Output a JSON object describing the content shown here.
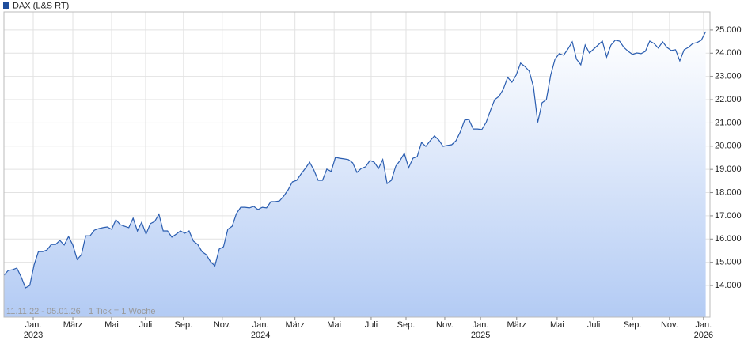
{
  "chart_data": {
    "type": "area",
    "series": [
      {
        "name": "DAX (L&S RT)",
        "color": "#2a5db0",
        "values": [
          14440,
          14650,
          14680,
          14750,
          14370,
          13900,
          14000,
          14890,
          15460,
          15460,
          15530,
          15770,
          15770,
          15940,
          15740,
          16110,
          15740,
          15120,
          15330,
          16140,
          16140,
          16380,
          16450,
          16490,
          16520,
          16420,
          16830,
          16620,
          16550,
          16490,
          16900,
          16350,
          16720,
          16210,
          16660,
          16760,
          17070,
          16350,
          16350,
          16080,
          16210,
          16350,
          16250,
          16350,
          15910,
          15770,
          15460,
          15330,
          15020,
          14850,
          15570,
          15670,
          16420,
          16550,
          17100,
          17370,
          17370,
          17340,
          17410,
          17270,
          17370,
          17340,
          17610,
          17610,
          17640,
          17850,
          18120,
          18460,
          18530,
          18800,
          19040,
          19310,
          18970,
          18530,
          18530,
          19010,
          18910,
          19520,
          19480,
          19450,
          19420,
          19280,
          18870,
          19040,
          19110,
          19380,
          19310,
          19040,
          19420,
          18390,
          18530,
          19140,
          19380,
          19690,
          19070,
          19480,
          19550,
          20160,
          19990,
          20230,
          20440,
          20270,
          19990,
          20030,
          20060,
          20230,
          20610,
          21120,
          21150,
          20740,
          20740,
          20710,
          21020,
          21530,
          22000,
          22140,
          22450,
          22960,
          22750,
          23060,
          23570,
          23430,
          23230,
          22550,
          21020,
          21870,
          22000,
          23060,
          23740,
          23980,
          23910,
          24180,
          24490,
          23740,
          23500,
          24350,
          24010,
          24180,
          24350,
          24520,
          23840,
          24350,
          24560,
          24520,
          24250,
          24080,
          23950,
          24010,
          23980,
          24080,
          24520,
          24420,
          24220,
          24490,
          24250,
          24120,
          24150,
          23670,
          24150,
          24250,
          24420,
          24460,
          24560,
          24930
        ]
      }
    ],
    "xlim": [
      0,
      164
    ],
    "xticks": [
      {
        "value": 6.8,
        "label": "Jan."
      },
      {
        "value": 16,
        "label": "März"
      },
      {
        "value": 25,
        "label": "Mai"
      },
      {
        "value": 32.9,
        "label": "Juli"
      },
      {
        "value": 41.7,
        "label": "Sep."
      },
      {
        "value": 50.7,
        "label": "Nov."
      },
      {
        "value": 59.6,
        "label": "Jan."
      },
      {
        "value": 67.6,
        "label": "März"
      },
      {
        "value": 76.7,
        "label": "Mai"
      },
      {
        "value": 85.3,
        "label": "Juli"
      },
      {
        "value": 93.4,
        "label": "Sep."
      },
      {
        "value": 102.4,
        "label": "Nov."
      },
      {
        "value": 110.7,
        "label": "Jan."
      },
      {
        "value": 119.1,
        "label": "März"
      },
      {
        "value": 128.5,
        "label": "Mai"
      },
      {
        "value": 137,
        "label": "Juli"
      },
      {
        "value": 146,
        "label": "Sep."
      },
      {
        "value": 154.6,
        "label": "Nov."
      },
      {
        "value": 162.5,
        "label": "Jan."
      }
    ],
    "x_year_labels": [
      {
        "value": 6.8,
        "label": "2023"
      },
      {
        "value": 59.6,
        "label": "2024"
      },
      {
        "value": 110.7,
        "label": "2025"
      },
      {
        "value": 162.5,
        "label": "2026"
      }
    ],
    "ylim": [
      12640,
      25780
    ],
    "yticks": [
      {
        "value": 14000,
        "label": "14.000"
      },
      {
        "value": 15000,
        "label": "15.000"
      },
      {
        "value": 16000,
        "label": "16.000"
      },
      {
        "value": 17000,
        "label": "17.000"
      },
      {
        "value": 18000,
        "label": "18.000"
      },
      {
        "value": 19000,
        "label": "19.000"
      },
      {
        "value": 20000,
        "label": "20.000"
      },
      {
        "value": 21000,
        "label": "21.000"
      },
      {
        "value": 22000,
        "label": "22.000"
      },
      {
        "value": 23000,
        "label": "23.000"
      },
      {
        "value": 24000,
        "label": "24.000"
      },
      {
        "value": 25000,
        "label": "25.000"
      }
    ],
    "grid": true,
    "annotations": [
      "11.11.22 - 05.01.26",
      "1 Tick = 1 Woche"
    ]
  }
}
